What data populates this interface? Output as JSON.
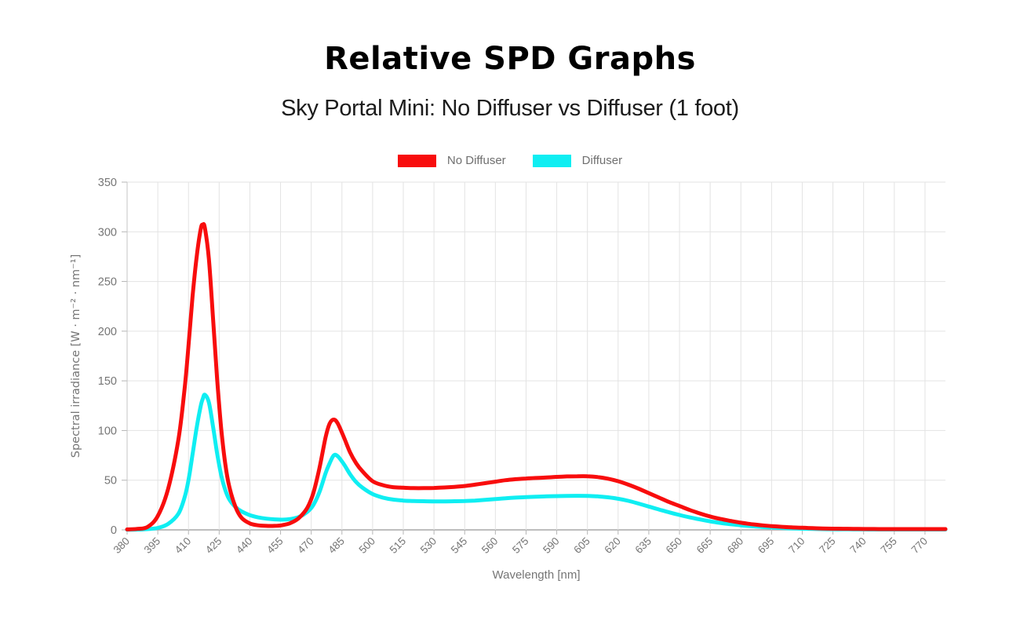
{
  "header": {
    "title": "Relative SPD Graphs",
    "subtitle": "Sky Portal Mini: No Diffuser vs Diffuser (1 foot)"
  },
  "colors": {
    "background": "#ffffff",
    "grid": "#e3e3e3",
    "axis_line": "#a8a8a8",
    "left_axis_line": "#c6c6c6",
    "tick_mark": "#b5b5b5",
    "tick_text": "#757575",
    "axis_title_text": "#757575",
    "title_text": "#000000",
    "subtitle_text": "#1b1b1b",
    "series_red": "#f80d0d",
    "series_cyan": "#0feef2"
  },
  "chart_data": {
    "type": "line",
    "title": "Relative SPD Graphs",
    "subtitle": "Sky Portal Mini: No Diffuser vs Diffuser (1 foot)",
    "xlabel": "Wavelength [nm]",
    "ylabel": "Spectral irradiance [W · m⁻² · nm⁻¹]",
    "xlim": [
      380,
      780
    ],
    "ylim": [
      0,
      350
    ],
    "grid": true,
    "legend_position": "top",
    "xticks": [
      380,
      395,
      410,
      425,
      440,
      455,
      470,
      485,
      500,
      515,
      530,
      545,
      560,
      575,
      590,
      605,
      620,
      635,
      650,
      665,
      680,
      695,
      710,
      725,
      740,
      755,
      770
    ],
    "yticks": [
      0,
      50,
      100,
      150,
      200,
      250,
      300,
      350
    ],
    "x": [
      380,
      385,
      390,
      395,
      400,
      405,
      408,
      410,
      412,
      414,
      416,
      417,
      418,
      420,
      422,
      424,
      426,
      428,
      430,
      433,
      436,
      440,
      444,
      448,
      452,
      456,
      460,
      464,
      468,
      471,
      474,
      477,
      479,
      481,
      483,
      486,
      489,
      492,
      495,
      500,
      505,
      510,
      515,
      520,
      525,
      530,
      535,
      540,
      545,
      550,
      555,
      560,
      565,
      570,
      575,
      580,
      585,
      590,
      595,
      600,
      605,
      610,
      615,
      620,
      625,
      630,
      635,
      640,
      645,
      650,
      655,
      660,
      665,
      670,
      675,
      680,
      685,
      690,
      695,
      700,
      705,
      710,
      715,
      720,
      725,
      730,
      735,
      740,
      745,
      750,
      755,
      760,
      765,
      770,
      775,
      780
    ],
    "series": [
      {
        "name": "Diffuser",
        "color": "#0feef2",
        "values": [
          0.2,
          0.3,
          0.8,
          2,
          6,
          16,
          32,
          50,
          76,
          103,
          125,
          132,
          136,
          128,
          104,
          77,
          55,
          40,
          30.5,
          23,
          18.5,
          14.8,
          12.6,
          11.3,
          10.6,
          10.3,
          11,
          13,
          18,
          25,
          38,
          57,
          67,
          75,
          74,
          66,
          56,
          48,
          42.5,
          36,
          32.5,
          30.5,
          29.5,
          29,
          28.8,
          28.7,
          28.7,
          28.8,
          29,
          29.5,
          30.2,
          31,
          31.8,
          32.5,
          33,
          33.4,
          33.7,
          34,
          34.2,
          34.3,
          34.2,
          33.7,
          32.8,
          31.3,
          29.2,
          26.5,
          23.5,
          20.5,
          17.6,
          15,
          12.6,
          10.5,
          8.6,
          7,
          5.7,
          4.6,
          3.7,
          3,
          2.4,
          1.9,
          1.5,
          1.2,
          1,
          0.8,
          0.7,
          0.6,
          0.5,
          0.5,
          0.4,
          0.4,
          0.4,
          0.4,
          0.4,
          0.4,
          0.4,
          0.4
        ]
      },
      {
        "name": "No Diffuser",
        "color": "#f80d0d",
        "values": [
          0.5,
          1,
          3,
          14,
          41,
          90,
          140,
          185,
          235,
          275,
          303,
          307,
          304,
          272,
          213,
          152,
          102,
          66,
          43,
          23,
          12,
          6.5,
          4.6,
          4,
          4,
          4.8,
          7,
          12,
          22,
          37,
          62,
          93,
          107,
          111,
          107,
          93,
          78,
          67,
          59,
          49,
          45,
          43,
          42.4,
          42,
          42,
          42.2,
          42.7,
          43.3,
          44.2,
          45.5,
          47,
          48.5,
          50,
          51,
          51.7,
          52.2,
          52.7,
          53.3,
          53.8,
          54,
          54,
          53.2,
          51.5,
          49,
          45.5,
          41.5,
          37,
          32.5,
          28,
          24,
          20,
          16.5,
          13.5,
          11,
          9,
          7.2,
          5.8,
          4.7,
          3.8,
          3.1,
          2.5,
          2.1,
          1.7,
          1.4,
          1.2,
          1.1,
          1,
          0.9,
          0.9,
          0.8,
          0.8,
          0.8,
          0.8,
          0.8,
          0.8,
          0.8
        ]
      }
    ],
    "legend_order": [
      "No Diffuser",
      "Diffuser"
    ]
  }
}
